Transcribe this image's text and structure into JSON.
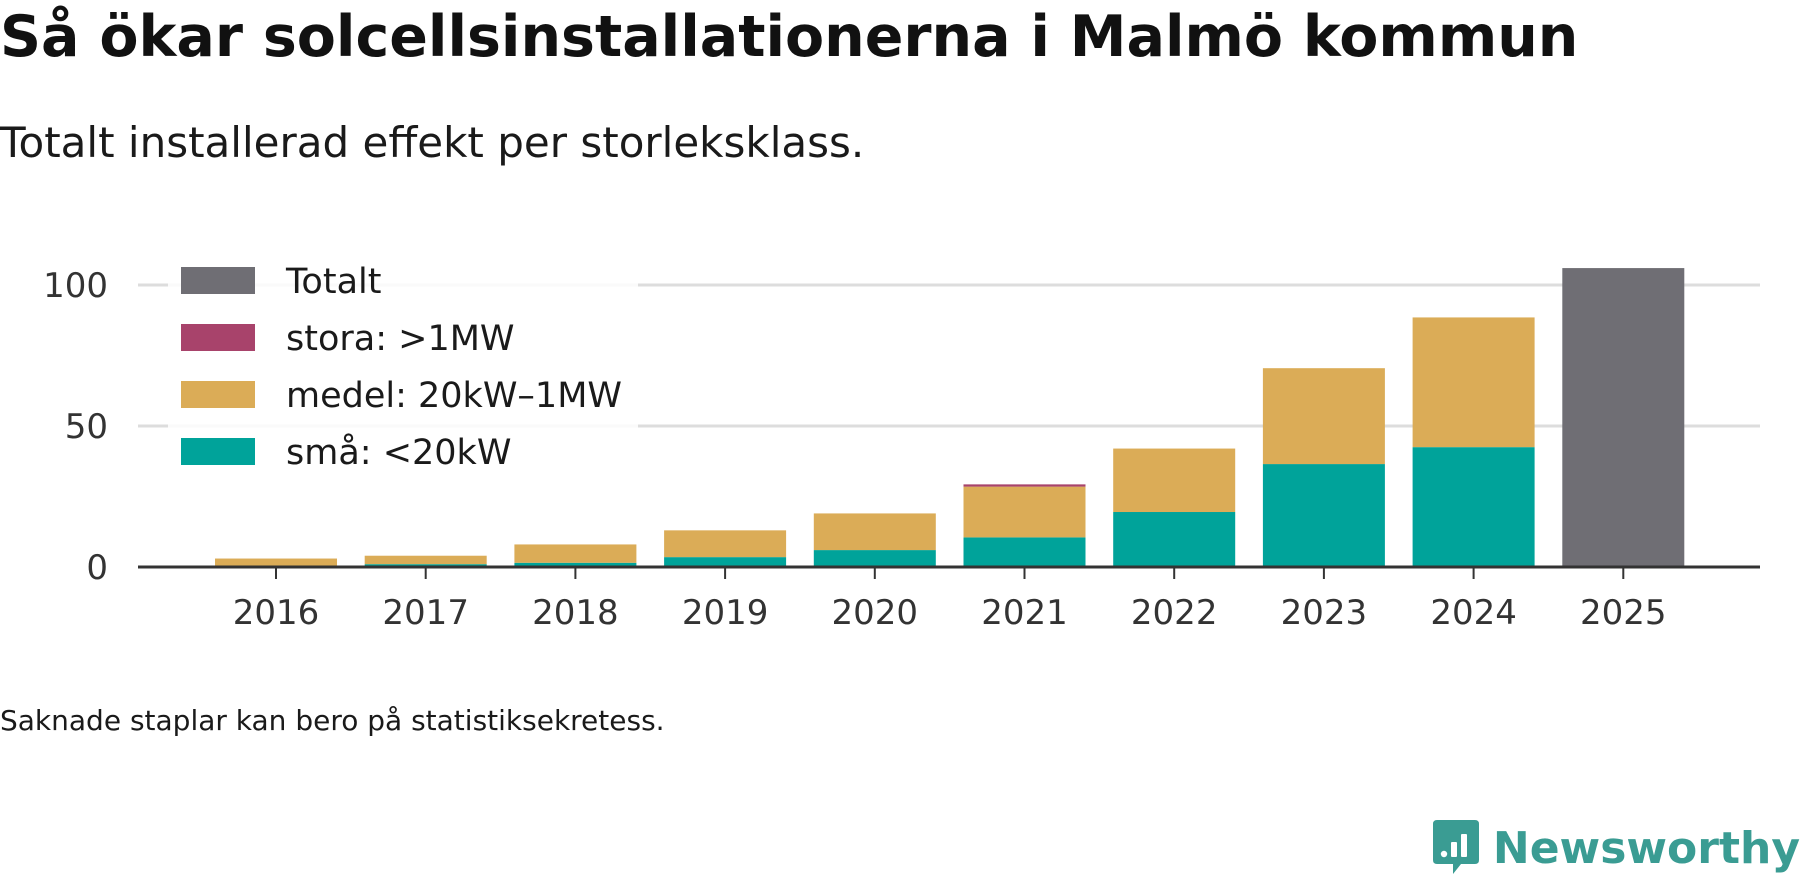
{
  "title": "Så ökar solcellsinstallationerna i Malmö kommun",
  "subtitle": "Totalt installerad effekt per storleksklass.",
  "note": "Saknade staplar kan bero på statistiksekretess.",
  "brand": "Newsworthy",
  "colors": {
    "totalt": "#6f6e74",
    "stora": "#a8436b",
    "medel": "#dbac57",
    "sma": "#00a39a",
    "grid": "#dddddd",
    "axis": "#333333",
    "brand": "#3a9c93"
  },
  "chart_data": {
    "type": "bar",
    "stacked": true,
    "categories": [
      "2016",
      "2017",
      "2018",
      "2019",
      "2020",
      "2021",
      "2022",
      "2023",
      "2024",
      "2025"
    ],
    "series": [
      {
        "key": "sma",
        "name": "små: <20kW",
        "values": [
          0.5,
          1,
          1.5,
          3.5,
          6,
          10.5,
          19.5,
          36.5,
          42.5,
          null
        ]
      },
      {
        "key": "medel",
        "name": "medel: 20kW–1MW",
        "values": [
          2.5,
          3,
          6.5,
          9.5,
          13,
          18,
          22.5,
          34,
          46,
          null
        ]
      },
      {
        "key": "stora",
        "name": "stora: >1MW",
        "values": [
          0,
          0,
          0,
          0,
          0,
          0.8,
          0,
          0,
          0,
          null
        ]
      },
      {
        "key": "totalt",
        "name": "Totalt",
        "values": [
          null,
          null,
          null,
          null,
          null,
          null,
          null,
          null,
          null,
          106
        ]
      }
    ],
    "legend": [
      "Totalt",
      "stora: >1MW",
      "medel: 20kW–1MW",
      "små: <20kW"
    ],
    "legend_keys": [
      "totalt",
      "stora",
      "medel",
      "sma"
    ],
    "yticks": [
      0,
      50,
      100
    ],
    "ylim": [
      0,
      110
    ],
    "xlabel": "",
    "ylabel": ""
  }
}
